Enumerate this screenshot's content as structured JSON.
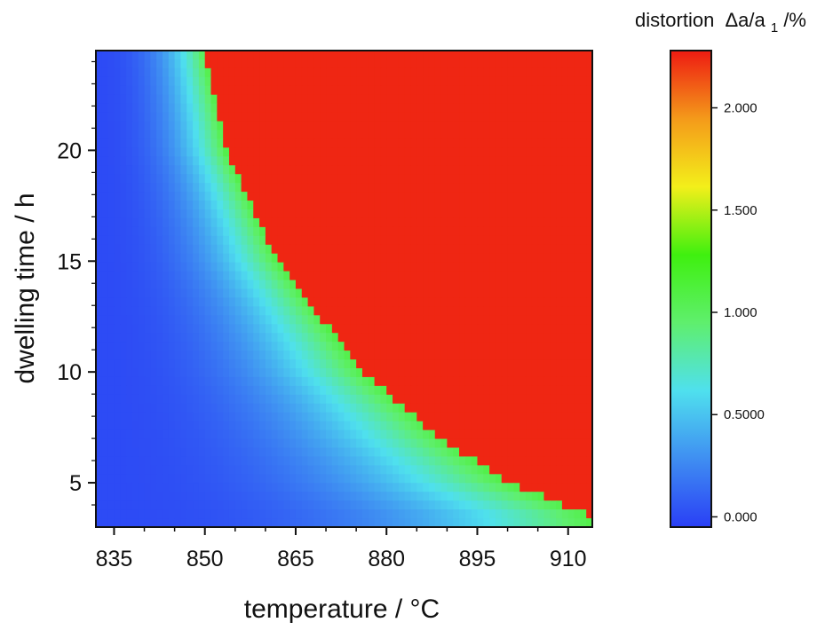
{
  "chart_data": {
    "type": "heatmap",
    "title": "",
    "xlabel": "temperature / °C",
    "ylabel": "dwelling time / h",
    "xlim": [
      832,
      914
    ],
    "ylim": [
      3,
      24.5
    ],
    "x_ticks": [
      835,
      850,
      865,
      880,
      895,
      910
    ],
    "y_ticks": [
      5,
      10,
      15,
      20
    ],
    "x_tick_labels": [
      "835",
      "850",
      "865",
      "880",
      "895",
      "910"
    ],
    "y_tick_labels": [
      "5",
      "10",
      "15",
      "20"
    ],
    "colorbar": {
      "title": "distortion",
      "quantity_main": "Δa/a",
      "quantity_subscript": "1",
      "quantity_unit": " /%",
      "range": [
        -0.05,
        2.28
      ],
      "ticks": [
        0.0,
        0.5,
        1.0,
        1.5,
        2.0
      ],
      "tick_labels": [
        "0.000",
        "0.5000",
        "1.000",
        "1.500",
        "2.000"
      ],
      "colors": [
        "#2a3ff5",
        "#3f8ef2",
        "#4fe0ee",
        "#5fef6d",
        "#3ff00f",
        "#f3ef1a",
        "#f49a1a",
        "#ee1b12"
      ]
    },
    "boundary": [
      {
        "t": 24.5,
        "T": 850
      },
      {
        "t": 20,
        "T": 853.5
      },
      {
        "t": 15,
        "T": 862
      },
      {
        "t": 10,
        "T": 876
      },
      {
        "t": 7,
        "T": 889
      },
      {
        "t": 5,
        "T": 900
      },
      {
        "t": 3.5,
        "T": 914
      }
    ],
    "saturated_value": 2.25,
    "grid": false,
    "legend": "colorbar right"
  }
}
